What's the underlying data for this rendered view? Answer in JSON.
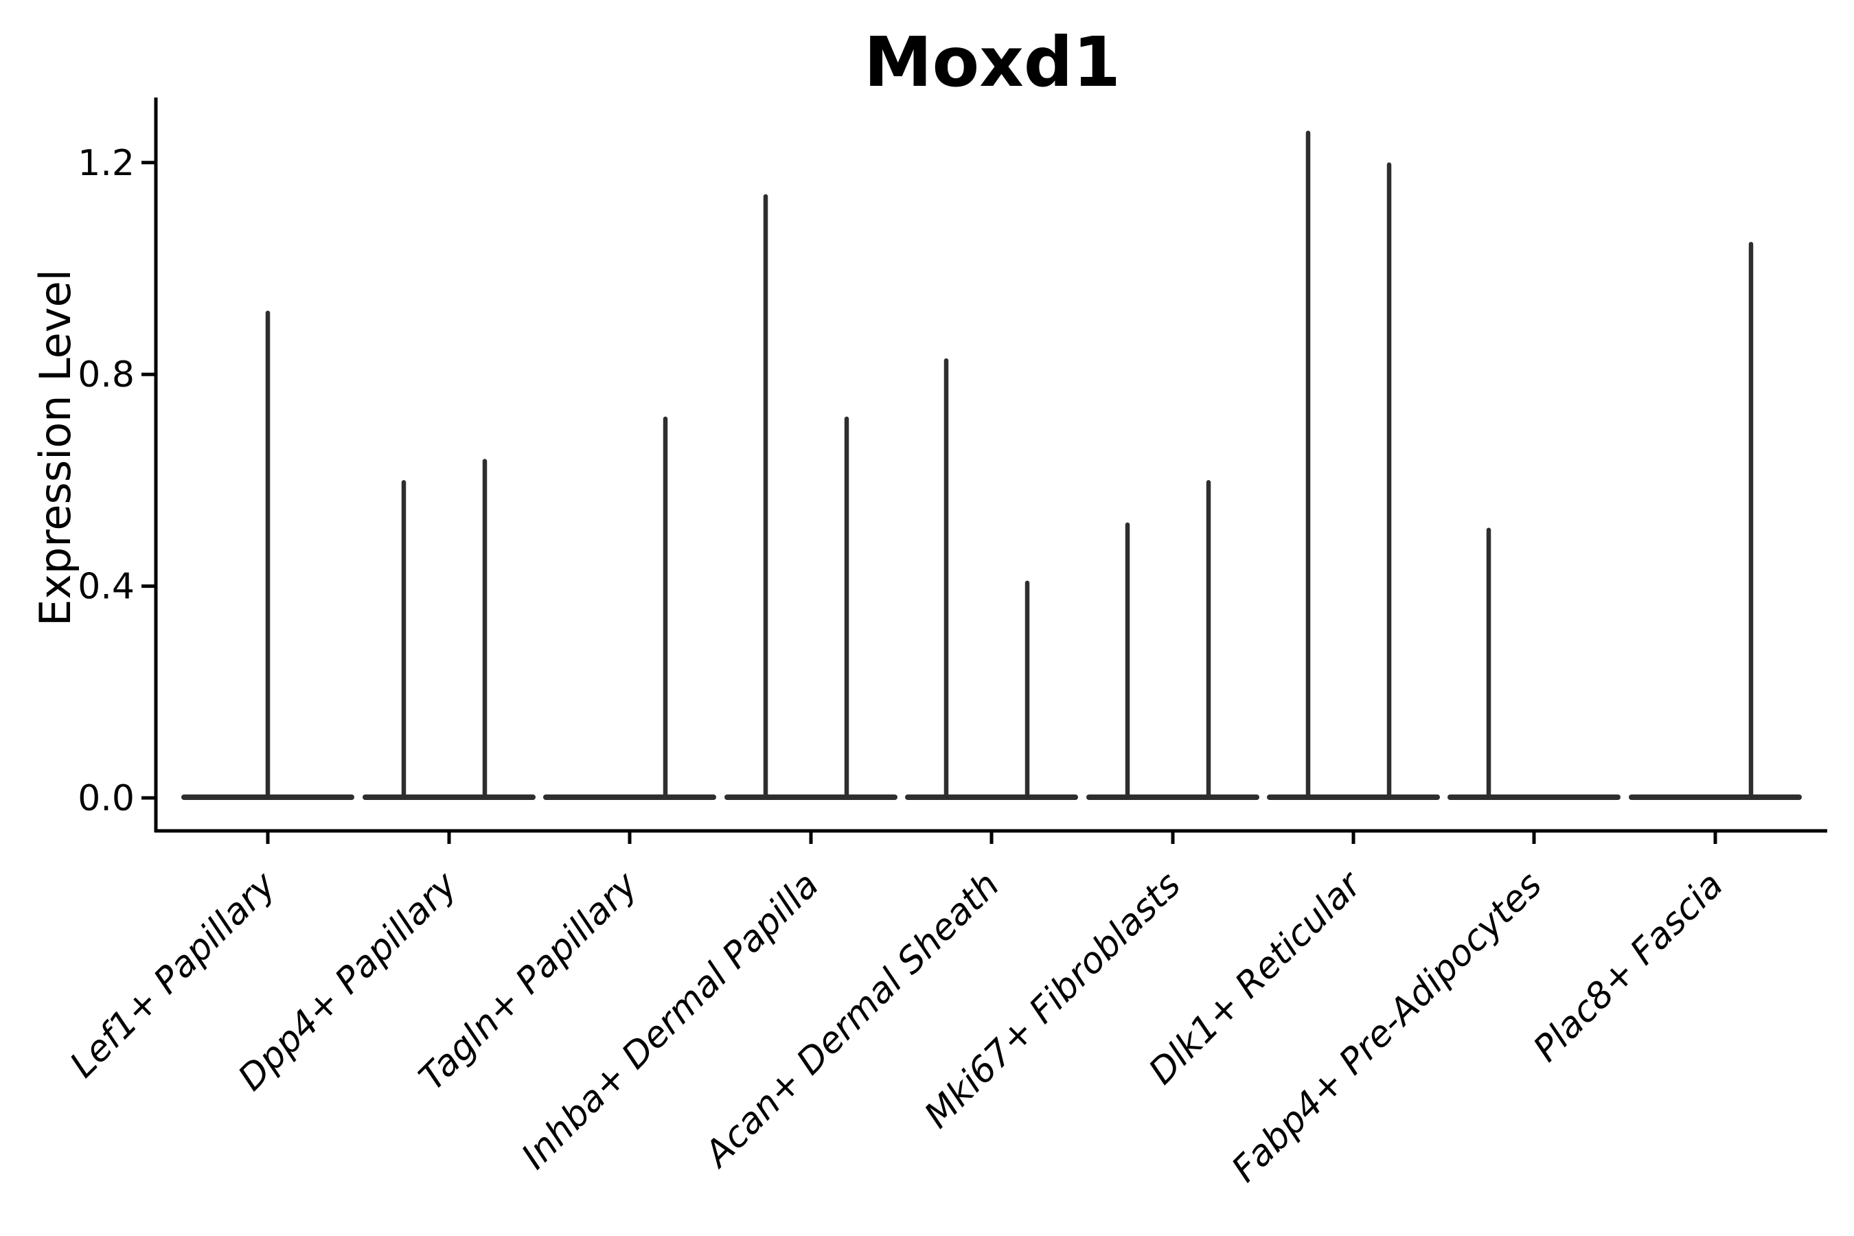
{
  "chart_data": {
    "type": "violin",
    "title": "Moxd1",
    "xlabel": "",
    "ylabel": "Expression Level",
    "ylim": [
      -0.06,
      1.32
    ],
    "yticks": [
      0.0,
      0.4,
      0.8,
      1.2
    ],
    "ytick_labels": [
      "0.0",
      "0.4",
      "0.8",
      "1.2"
    ],
    "grid": false,
    "legend": false,
    "baseline_value": 0.0,
    "categories": [
      "Lef1+ Papillary",
      "Dpp4+ Papillary",
      "Tagln+ Papillary",
      "Inhba+ Dermal Papilla",
      "Acan+ Dermal Sheath",
      "Mki67+ Fibroblasts",
      "Dlk1+ Reticular",
      "Fabp4+ Pre-Adipocytes",
      "Plac8+ Fascia"
    ],
    "series": [
      {
        "category": "Lef1+ Papillary",
        "violins": [
          {
            "slot": "center",
            "peak": 0.92
          }
        ]
      },
      {
        "category": "Dpp4+ Papillary",
        "violins": [
          {
            "slot": "left",
            "peak": 0.6
          },
          {
            "slot": "right",
            "peak": 0.64
          }
        ]
      },
      {
        "category": "Tagln+ Papillary",
        "violins": [
          {
            "slot": "right",
            "peak": 0.72
          }
        ]
      },
      {
        "category": "Inhba+ Dermal Papilla",
        "violins": [
          {
            "slot": "left",
            "peak": 1.14
          },
          {
            "slot": "right",
            "peak": 0.72
          }
        ]
      },
      {
        "category": "Acan+ Dermal Sheath",
        "violins": [
          {
            "slot": "left",
            "peak": 0.83
          },
          {
            "slot": "right",
            "peak": 0.41
          }
        ]
      },
      {
        "category": "Mki67+ Fibroblasts",
        "violins": [
          {
            "slot": "left",
            "peak": 0.52
          },
          {
            "slot": "right",
            "peak": 0.6
          }
        ]
      },
      {
        "category": "Dlk1+ Reticular",
        "violins": [
          {
            "slot": "left",
            "peak": 1.26
          },
          {
            "slot": "right",
            "peak": 1.2
          }
        ]
      },
      {
        "category": "Fabp4+ Pre-Adipocytes",
        "violins": [
          {
            "slot": "left",
            "peak": 0.51
          }
        ]
      },
      {
        "category": "Plac8+ Fascia",
        "violins": [
          {
            "slot": "right",
            "peak": 1.05
          }
        ]
      }
    ],
    "colors": {
      "violin": "#2e2e2e",
      "axis": "#000000",
      "text": "#000000",
      "background": "#ffffff"
    }
  }
}
